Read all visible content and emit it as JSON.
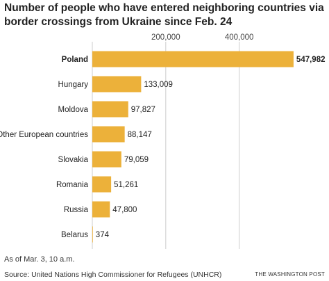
{
  "title": "Number of people who have entered neighboring countries via border crossings from Ukraine since Feb. 24",
  "note": "As of Mar. 3, 10 a.m.",
  "source": "Source: United Nations High Commissioner for Refugees (UNHCR)",
  "brand": "THE WASHINGTON POST",
  "colors": {
    "bar": "#ECB13A",
    "grid": "#cccccc",
    "text": "#222222"
  },
  "chart_data": {
    "type": "bar",
    "orientation": "horizontal",
    "title": "Number of people who have entered neighboring countries via border crossings from Ukraine since Feb. 24",
    "xlabel": "",
    "ylabel": "",
    "xlim": [
      0,
      550000
    ],
    "x_ticks": [
      200000,
      400000
    ],
    "x_tick_labels": [
      "200,000",
      "400,000"
    ],
    "grid": true,
    "categories": [
      "Poland",
      "Hungary",
      "Moldova",
      "Other European countries",
      "Slovakia",
      "Romania",
      "Russia",
      "Belarus"
    ],
    "values": [
      547982,
      133009,
      97827,
      88147,
      79059,
      51261,
      47800,
      374
    ],
    "value_labels": [
      "547,982",
      "133,009",
      "97,827",
      "88,147",
      "79,059",
      "51,261",
      "47,800",
      "374"
    ],
    "highlighted_category": "Poland"
  }
}
